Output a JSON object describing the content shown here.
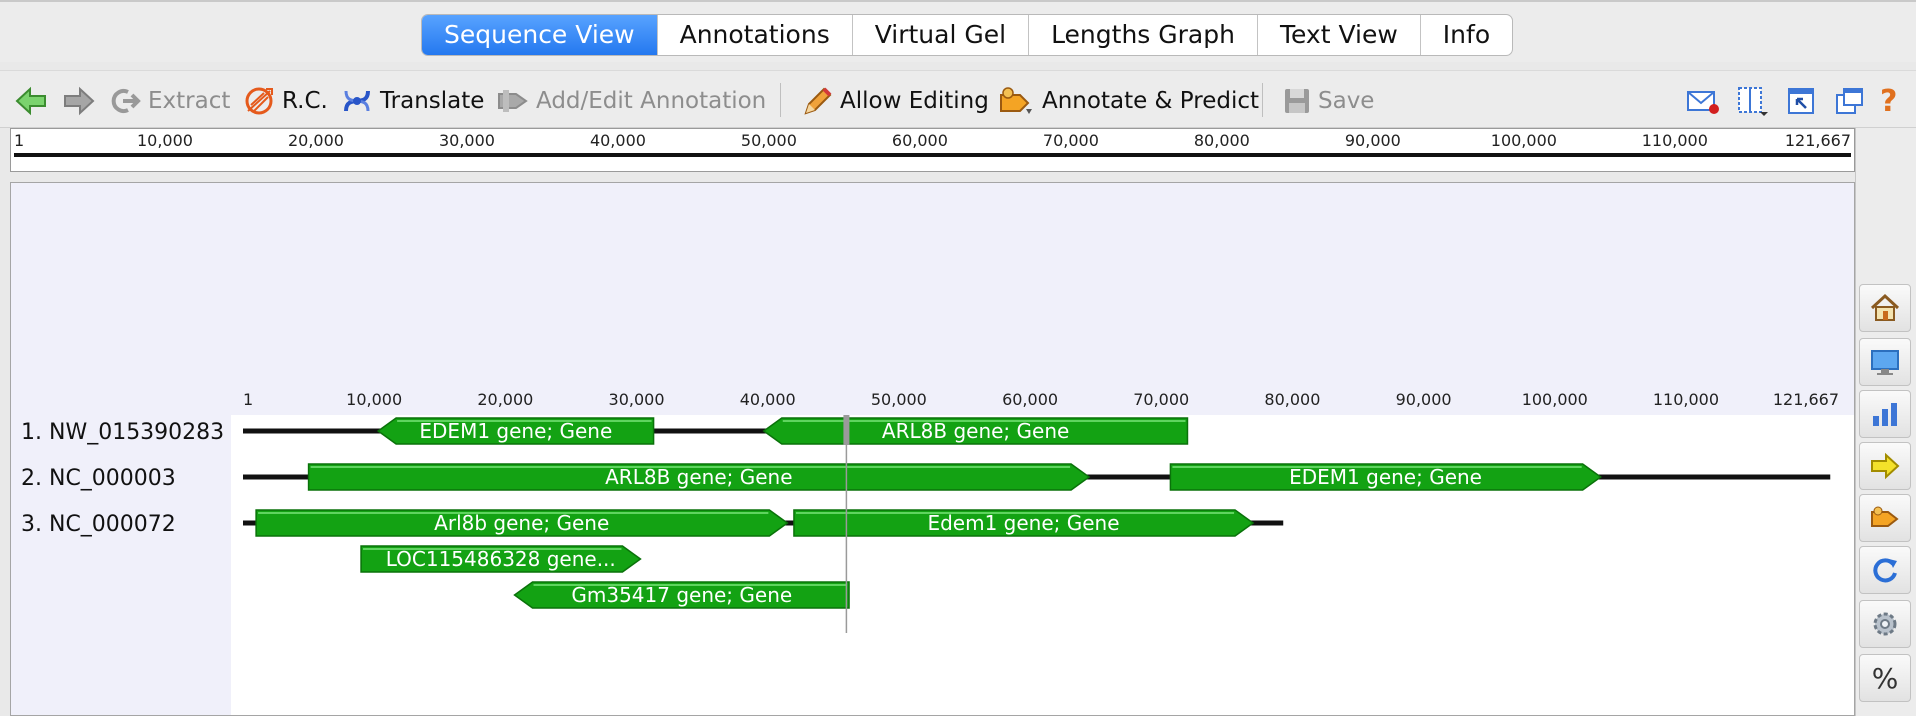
{
  "tabs": [
    {
      "label": "Sequence View",
      "active": true
    },
    {
      "label": "Annotations",
      "active": false
    },
    {
      "label": "Virtual Gel",
      "active": false
    },
    {
      "label": "Lengths Graph",
      "active": false
    },
    {
      "label": "Text View",
      "active": false
    },
    {
      "label": "Info",
      "active": false
    }
  ],
  "toolbar": {
    "extract": "Extract",
    "rc": "R.C.",
    "translate": "Translate",
    "add_edit": "Add/Edit Annotation",
    "allow_editing": "Allow Editing",
    "annotate_predict": "Annotate & Predict",
    "save": "Save"
  },
  "ruler": {
    "max": 121667,
    "tick_labels": [
      "1",
      "10,000",
      "20,000",
      "30,000",
      "40,000",
      "50,000",
      "60,000",
      "70,000",
      "80,000",
      "90,000",
      "100,000",
      "110,000",
      "121,667"
    ]
  },
  "sequences": [
    {
      "label": "1. NW_015390283",
      "length": 69000
    },
    {
      "label": "2. NC_000003",
      "length": 121000
    },
    {
      "label": "3. NC_000072",
      "length": 79300
    }
  ],
  "annotations": [
    {
      "label": "EDEM1 gene; Gene",
      "seq": 0,
      "lane": 0,
      "start": 10300,
      "end": 31300,
      "dir": "rev"
    },
    {
      "label": "ARL8B gene; Gene",
      "seq": 0,
      "lane": 0,
      "start": 39700,
      "end": 72000,
      "dir": "rev"
    },
    {
      "label": "ARL8B gene; Gene",
      "seq": 1,
      "lane": 0,
      "start": 5000,
      "end": 64500,
      "dir": "fwd"
    },
    {
      "label": "EDEM1 gene; Gene",
      "seq": 1,
      "lane": 0,
      "start": 70700,
      "end": 103500,
      "dir": "fwd"
    },
    {
      "label": "Arl8b gene; Gene",
      "seq": 2,
      "lane": 0,
      "start": 1000,
      "end": 41500,
      "dir": "fwd"
    },
    {
      "label": "Edem1 gene; Gene",
      "seq": 2,
      "lane": 0,
      "start": 42000,
      "end": 77000,
      "dir": "fwd"
    },
    {
      "label": "LOC115486328 gene...",
      "seq": 2,
      "lane": 1,
      "start": 9000,
      "end": 30300,
      "dir": "fwd"
    },
    {
      "label": "Gm35417 gene; Gene",
      "seq": 2,
      "lane": 2,
      "start": 20700,
      "end": 46200,
      "dir": "rev"
    }
  ],
  "cursor_position": 46000,
  "sidebar_icons": [
    "home-icon",
    "monitor-icon",
    "bar-chart-icon",
    "yellow-arrow-icon",
    "annotate-predict-icon",
    "refresh-icon",
    "gear-icon",
    "percent-icon"
  ],
  "colors": {
    "gene": "#13a213",
    "gene_border": "#0a720a",
    "active_tab": "#2f80f2"
  }
}
